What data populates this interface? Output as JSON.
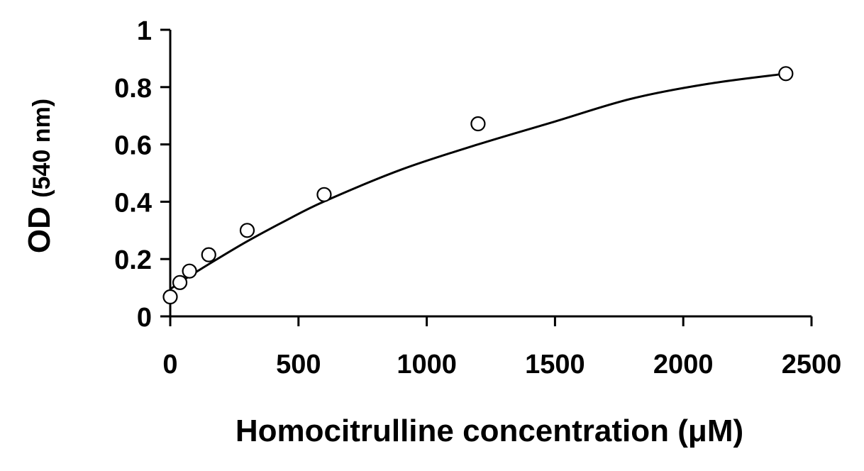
{
  "chart_data": {
    "type": "scatter",
    "title": "",
    "xlabel": "Homocitrulline concentration (μM)",
    "ylabel_main": "OD",
    "ylabel_sub": "(540 nm)",
    "xlim": [
      0,
      2500
    ],
    "ylim": [
      0,
      1
    ],
    "x_ticks": [
      0,
      500,
      1000,
      1500,
      2000,
      2500
    ],
    "x_tick_labels": [
      "0",
      "500",
      "1000",
      "1500",
      "2000",
      "2500"
    ],
    "y_ticks": [
      0,
      0.2,
      0.4,
      0.6,
      0.8,
      1
    ],
    "y_tick_labels": [
      "0",
      "0.2",
      "0.4",
      "0.6",
      "0.8",
      "1"
    ],
    "grid": false,
    "series": [
      {
        "marker": "open-circle",
        "x": [
          0,
          37.5,
          75,
          150,
          300,
          600,
          1200,
          2400
        ],
        "y": [
          0.068,
          0.118,
          0.158,
          0.215,
          0.3,
          0.425,
          0.672,
          0.847
        ]
      }
    ],
    "fit_curve": {
      "x": [
        0,
        37.5,
        75,
        150,
        300,
        450,
        600,
        900,
        1200,
        1500,
        1800,
        2100,
        2400
      ],
      "y": [
        0.095,
        0.118,
        0.14,
        0.182,
        0.262,
        0.334,
        0.401,
        0.512,
        0.6,
        0.68,
        0.76,
        0.812,
        0.847
      ]
    }
  }
}
